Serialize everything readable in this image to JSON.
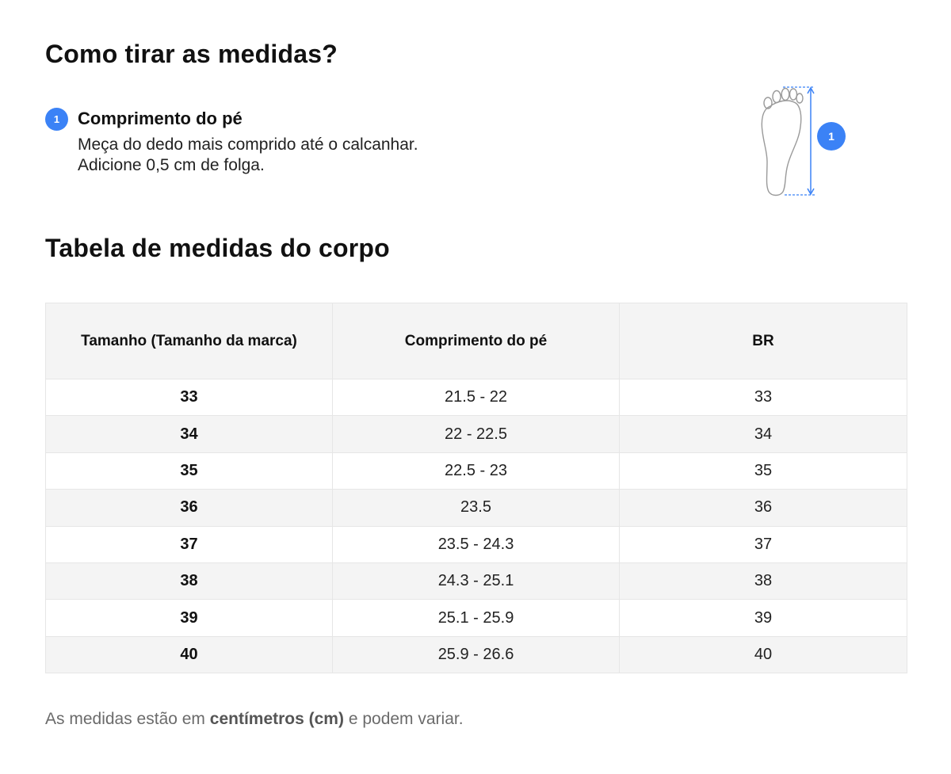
{
  "heading": "Como tirar as medidas?",
  "step": {
    "number": "1",
    "title": "Comprimento do pé",
    "description": "Meça do dedo mais comprido até o calcanhar. Adicione 0,5 cm de folga."
  },
  "figure": {
    "icon": "foot-length-icon",
    "marker": "1",
    "accent_color": "#3b82f6"
  },
  "table_heading": "Tabela de medidas do corpo",
  "table": {
    "columns": [
      "Tamanho (Tamanho da marca)",
      "Comprimento do pé",
      "BR"
    ],
    "rows": [
      [
        "33",
        "21.5 - 22",
        "33"
      ],
      [
        "34",
        "22 - 22.5",
        "34"
      ],
      [
        "35",
        "22.5 - 23",
        "35"
      ],
      [
        "36",
        "23.5",
        "36"
      ],
      [
        "37",
        "23.5 - 24.3",
        "37"
      ],
      [
        "38",
        "24.3 - 25.1",
        "38"
      ],
      [
        "39",
        "25.1 - 25.9",
        "39"
      ],
      [
        "40",
        "25.9 - 26.6",
        "40"
      ]
    ]
  },
  "note": {
    "prefix": "As medidas estão em ",
    "emphasis": "centímetros (cm)",
    "suffix": " e podem variar."
  }
}
